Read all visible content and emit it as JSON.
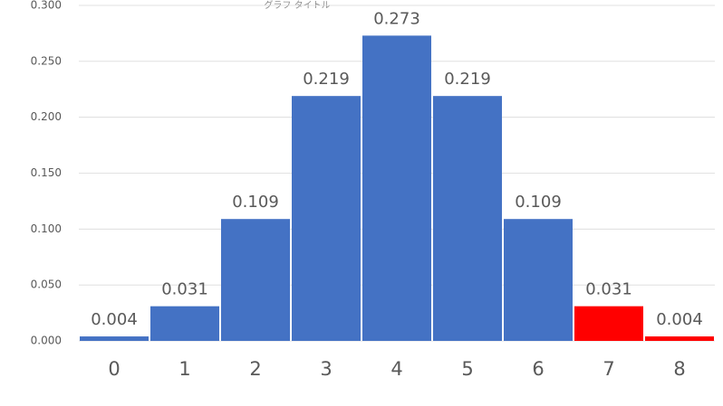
{
  "chart_data": {
    "type": "bar",
    "title": "グラフ タイトル",
    "categories": [
      "0",
      "1",
      "2",
      "3",
      "4",
      "5",
      "6",
      "7",
      "8"
    ],
    "values": [
      0.004,
      0.031,
      0.109,
      0.219,
      0.273,
      0.219,
      0.109,
      0.031,
      0.004
    ],
    "colors": [
      "#4472c4",
      "#4472c4",
      "#4472c4",
      "#4472c4",
      "#4472c4",
      "#4472c4",
      "#4472c4",
      "#ff0000",
      "#ff0000"
    ],
    "ylim": [
      0,
      0.3
    ],
    "yticks": [
      {
        "value": 0,
        "label": "0.000"
      },
      {
        "value": 0.05,
        "label": "0.050"
      },
      {
        "value": 0.1,
        "label": "0.100"
      },
      {
        "value": 0.15,
        "label": "0.150"
      },
      {
        "value": 0.2,
        "label": "0.200"
      },
      {
        "value": 0.25,
        "label": "0.250"
      },
      {
        "value": 0.3,
        "label": "0.300"
      }
    ],
    "grid": true
  }
}
